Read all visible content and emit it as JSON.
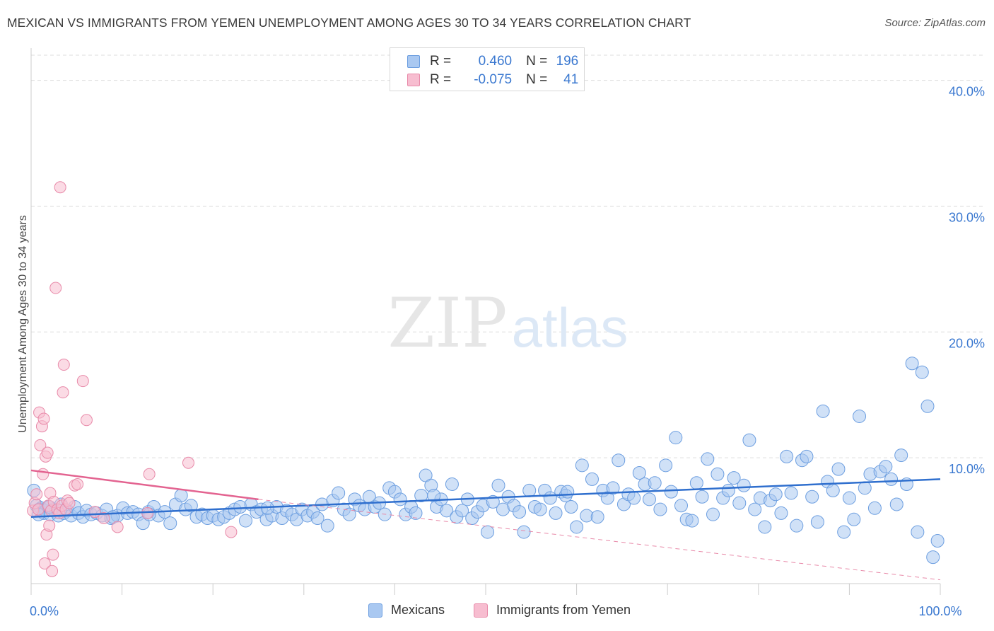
{
  "title": "MEXICAN VS IMMIGRANTS FROM YEMEN UNEMPLOYMENT AMONG AGES 30 TO 34 YEARS CORRELATION CHART",
  "source": "Source: ZipAtlas.com",
  "watermark": {
    "zip": "ZIP",
    "atlas": "atlas"
  },
  "legend": {
    "r_label": "R =",
    "n_label": "N =",
    "rows": [
      {
        "name": "Mexicans",
        "r": "0.460",
        "n": "196",
        "color": "#a9c8f1",
        "stroke": "#6c9ee0"
      },
      {
        "name": "Immigrants from Yemen",
        "r": "-0.075",
        "n": "41",
        "color": "#f7bdd0",
        "stroke": "#e88aa9"
      }
    ]
  },
  "chart_data": {
    "type": "scatter",
    "xlabel": "",
    "ylabel": "Unemployment Among Ages 30 to 34 years",
    "xlim": [
      0,
      100
    ],
    "ylim": [
      0,
      42
    ],
    "x_tick_labels": [
      {
        "value": 0,
        "label": "0.0%"
      },
      {
        "value": 100,
        "label": "100.0%"
      }
    ],
    "y_tick_labels": [
      {
        "value": 10,
        "label": "10.0%"
      },
      {
        "value": 20,
        "label": "20.0%"
      },
      {
        "value": 30,
        "label": "30.0%"
      },
      {
        "value": 40,
        "label": "40.0%"
      }
    ],
    "series": [
      {
        "name": "Mexicans",
        "color": "#a9c8f1",
        "stroke": "#6c9ee0",
        "trend": {
          "x0": 0,
          "y0": 5.3,
          "x1": 100,
          "y1": 8.3,
          "color": "#2f6fce"
        },
        "points": [
          [
            0.3,
            7.4
          ],
          [
            0.6,
            6.2
          ],
          [
            0.9,
            5.9
          ],
          [
            1.1,
            6.0
          ],
          [
            1.4,
            5.6
          ],
          [
            1.6,
            5.8
          ],
          [
            1.9,
            6.1
          ],
          [
            2.1,
            5.5
          ],
          [
            2.4,
            5.9
          ],
          [
            2.7,
            5.7
          ],
          [
            3.0,
            5.4
          ],
          [
            3.3,
            6.3
          ],
          [
            3.6,
            5.6
          ],
          [
            4.0,
            5.8
          ],
          [
            4.4,
            5.4
          ],
          [
            4.8,
            6.1
          ],
          [
            5.2,
            5.6
          ],
          [
            5.7,
            5.3
          ],
          [
            6.1,
            5.8
          ],
          [
            6.6,
            5.5
          ],
          [
            7.2,
            5.6
          ],
          [
            7.8,
            5.4
          ],
          [
            8.3,
            5.9
          ],
          [
            8.8,
            5.2
          ],
          [
            9.5,
            5.4
          ],
          [
            10.1,
            6.0
          ],
          [
            10.6,
            5.6
          ],
          [
            11.2,
            5.7
          ],
          [
            11.8,
            5.5
          ],
          [
            12.3,
            4.8
          ],
          [
            12.9,
            5.7
          ],
          [
            13.5,
            6.1
          ],
          [
            14.0,
            5.4
          ],
          [
            14.7,
            5.7
          ],
          [
            15.3,
            4.8
          ],
          [
            15.9,
            6.3
          ],
          [
            16.5,
            7.0
          ],
          [
            17.0,
            5.9
          ],
          [
            17.6,
            6.2
          ],
          [
            18.2,
            5.3
          ],
          [
            18.8,
            5.5
          ],
          [
            19.4,
            5.2
          ],
          [
            20.0,
            5.4
          ],
          [
            20.6,
            5.1
          ],
          [
            21.2,
            5.3
          ],
          [
            21.8,
            5.6
          ],
          [
            22.4,
            5.9
          ],
          [
            23.0,
            6.1
          ],
          [
            23.6,
            5.0
          ],
          [
            24.2,
            6.3
          ],
          [
            24.8,
            5.7
          ],
          [
            25.3,
            5.9
          ],
          [
            25.9,
            5.1
          ],
          [
            26.5,
            5.4
          ],
          [
            27.0,
            6.1
          ],
          [
            27.6,
            5.2
          ],
          [
            28.1,
            5.8
          ],
          [
            28.7,
            5.5
          ],
          [
            29.2,
            5.1
          ],
          [
            29.8,
            5.9
          ],
          [
            30.4,
            5.4
          ],
          [
            31.0,
            5.7
          ],
          [
            31.5,
            5.2
          ],
          [
            32.0,
            6.3
          ],
          [
            32.6,
            4.6
          ],
          [
            33.2,
            6.6
          ],
          [
            33.8,
            7.2
          ],
          [
            34.4,
            5.9
          ],
          [
            35.0,
            5.5
          ],
          [
            35.6,
            6.7
          ],
          [
            36.1,
            6.2
          ],
          [
            36.7,
            5.9
          ],
          [
            37.2,
            6.9
          ],
          [
            37.8,
            6.1
          ],
          [
            38.3,
            6.4
          ],
          [
            38.9,
            5.5
          ],
          [
            39.4,
            7.6
          ],
          [
            40.0,
            7.3
          ],
          [
            40.6,
            6.7
          ],
          [
            41.2,
            5.5
          ],
          [
            41.8,
            6.1
          ],
          [
            42.3,
            5.6
          ],
          [
            42.9,
            7.0
          ],
          [
            43.4,
            8.6
          ],
          [
            44.0,
            7.8
          ],
          [
            44.6,
            6.1
          ],
          [
            45.1,
            6.7
          ],
          [
            45.7,
            5.8
          ],
          [
            46.3,
            7.9
          ],
          [
            46.8,
            5.3
          ],
          [
            47.4,
            5.8
          ],
          [
            48.0,
            6.7
          ],
          [
            48.5,
            5.2
          ],
          [
            49.1,
            5.7
          ],
          [
            49.7,
            6.2
          ],
          [
            50.2,
            4.1
          ],
          [
            50.8,
            6.5
          ],
          [
            51.4,
            7.8
          ],
          [
            51.9,
            5.9
          ],
          [
            52.5,
            6.9
          ],
          [
            53.1,
            6.2
          ],
          [
            53.7,
            5.7
          ],
          [
            54.2,
            4.1
          ],
          [
            54.8,
            7.4
          ],
          [
            55.4,
            6.1
          ],
          [
            56.0,
            5.9
          ],
          [
            56.5,
            7.4
          ],
          [
            57.1,
            6.8
          ],
          [
            57.7,
            5.6
          ],
          [
            58.3,
            7.3
          ],
          [
            58.8,
            7.0
          ],
          [
            59.4,
            6.1
          ],
          [
            60.0,
            4.5
          ],
          [
            60.6,
            9.4
          ],
          [
            61.1,
            5.4
          ],
          [
            61.7,
            8.3
          ],
          [
            62.3,
            5.3
          ],
          [
            62.9,
            7.4
          ],
          [
            63.4,
            6.8
          ],
          [
            64.0,
            7.6
          ],
          [
            64.6,
            9.8
          ],
          [
            65.2,
            6.3
          ],
          [
            65.7,
            7.1
          ],
          [
            66.3,
            6.8
          ],
          [
            66.9,
            8.8
          ],
          [
            67.5,
            7.9
          ],
          [
            68.0,
            6.7
          ],
          [
            68.6,
            8.0
          ],
          [
            69.2,
            5.9
          ],
          [
            69.8,
            9.4
          ],
          [
            70.4,
            7.3
          ],
          [
            70.9,
            11.6
          ],
          [
            71.5,
            6.2
          ],
          [
            72.1,
            5.1
          ],
          [
            72.7,
            5.0
          ],
          [
            73.2,
            8.0
          ],
          [
            73.8,
            6.9
          ],
          [
            74.4,
            9.9
          ],
          [
            75.0,
            5.5
          ],
          [
            75.5,
            8.7
          ],
          [
            76.1,
            6.8
          ],
          [
            76.7,
            7.4
          ],
          [
            77.3,
            8.4
          ],
          [
            77.9,
            6.4
          ],
          [
            78.4,
            7.8
          ],
          [
            79.0,
            11.4
          ],
          [
            79.6,
            5.9
          ],
          [
            80.2,
            6.8
          ],
          [
            80.7,
            4.5
          ],
          [
            81.3,
            6.6
          ],
          [
            81.9,
            7.1
          ],
          [
            82.5,
            5.6
          ],
          [
            83.1,
            10.1
          ],
          [
            83.6,
            7.2
          ],
          [
            84.2,
            4.6
          ],
          [
            84.8,
            9.8
          ],
          [
            85.3,
            10.1
          ],
          [
            85.9,
            6.9
          ],
          [
            86.5,
            4.9
          ],
          [
            87.1,
            13.7
          ],
          [
            87.6,
            8.1
          ],
          [
            88.2,
            7.4
          ],
          [
            88.8,
            9.1
          ],
          [
            89.4,
            4.1
          ],
          [
            90.0,
            6.8
          ],
          [
            90.5,
            5.1
          ],
          [
            91.1,
            13.3
          ],
          [
            91.7,
            7.6
          ],
          [
            92.3,
            8.7
          ],
          [
            92.8,
            6.0
          ],
          [
            93.4,
            8.9
          ],
          [
            94.0,
            9.3
          ],
          [
            94.6,
            8.3
          ],
          [
            95.2,
            6.3
          ],
          [
            95.7,
            10.2
          ],
          [
            96.3,
            7.9
          ],
          [
            96.9,
            17.5
          ],
          [
            97.5,
            4.1
          ],
          [
            98.0,
            16.8
          ],
          [
            98.6,
            14.1
          ],
          [
            99.2,
            2.1
          ],
          [
            99.7,
            3.4
          ],
          [
            2.0,
            6.1
          ],
          [
            3.2,
            5.8
          ],
          [
            0.8,
            5.5
          ],
          [
            9.0,
            5.3
          ],
          [
            13.0,
            5.5
          ],
          [
            26.0,
            6.0
          ],
          [
            44.3,
            7.0
          ],
          [
            59.0,
            7.3
          ]
        ]
      },
      {
        "name": "Immigrants from Yemen",
        "color": "#f7bdd0",
        "stroke": "#e88aa9",
        "trend": {
          "x0": 0,
          "y0": 9.0,
          "x1": 25,
          "y1": 6.7,
          "color": "#e36390"
        },
        "trend_dashed": {
          "x0": 25,
          "y0": 6.7,
          "x1": 100,
          "y1": 0.3
        },
        "points": [
          [
            0.2,
            5.8
          ],
          [
            0.4,
            6.4
          ],
          [
            0.6,
            7.1
          ],
          [
            0.8,
            5.9
          ],
          [
            0.9,
            13.6
          ],
          [
            1.0,
            11.0
          ],
          [
            1.2,
            12.5
          ],
          [
            1.3,
            8.7
          ],
          [
            1.4,
            13.1
          ],
          [
            1.5,
            1.6
          ],
          [
            1.6,
            10.1
          ],
          [
            1.7,
            3.9
          ],
          [
            1.8,
            10.4
          ],
          [
            1.9,
            6.2
          ],
          [
            2.0,
            4.6
          ],
          [
            2.1,
            7.2
          ],
          [
            2.2,
            5.8
          ],
          [
            2.3,
            1.0
          ],
          [
            2.4,
            2.3
          ],
          [
            2.5,
            6.5
          ],
          [
            2.7,
            23.5
          ],
          [
            2.9,
            5.9
          ],
          [
            3.1,
            5.6
          ],
          [
            3.2,
            31.5
          ],
          [
            3.4,
            6.2
          ],
          [
            3.5,
            15.2
          ],
          [
            3.6,
            17.4
          ],
          [
            3.8,
            5.9
          ],
          [
            4.0,
            6.6
          ],
          [
            4.2,
            6.4
          ],
          [
            4.8,
            7.8
          ],
          [
            5.1,
            7.9
          ],
          [
            5.7,
            16.1
          ],
          [
            6.1,
            13.0
          ],
          [
            7.0,
            5.7
          ],
          [
            8.0,
            5.2
          ],
          [
            9.5,
            4.5
          ],
          [
            12.8,
            5.6
          ],
          [
            13.0,
            8.7
          ],
          [
            17.3,
            9.6
          ],
          [
            22.0,
            4.1
          ]
        ]
      }
    ]
  }
}
